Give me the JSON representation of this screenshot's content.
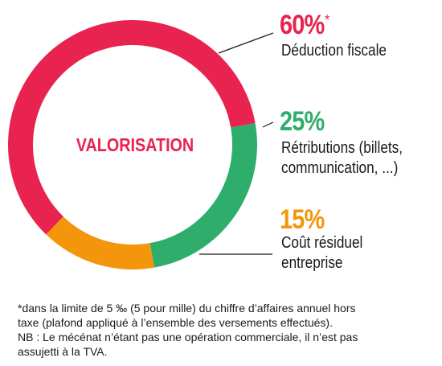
{
  "chart_data": {
    "type": "donut",
    "center_label": "VALORISATION",
    "slices": [
      {
        "percent_label": "60%",
        "marker": "*",
        "value": 60,
        "label_lines": [
          "Déduction fiscale"
        ],
        "color": "#e8234f"
      },
      {
        "percent_label": "25%",
        "value": 25,
        "label_lines": [
          "Rétributions (billets,",
          "communication, ...)"
        ],
        "color": "#2fae6b"
      },
      {
        "percent_label": "15%",
        "value": 15,
        "label_lines": [
          "Coût résiduel",
          "entreprise"
        ],
        "color": "#f4960c"
      }
    ]
  },
  "footnote": {
    "lines": [
      "*dans la limite de 5 ‰ (5 pour mille) du chiffre d’affaires annuel hors",
      "taxe (plafond appliqué à l’ensemble des versements effectués).",
      "NB : Le mécénat n’étant pas une opération commerciale, il n’est pas",
      "assujetti à la TVA."
    ]
  }
}
